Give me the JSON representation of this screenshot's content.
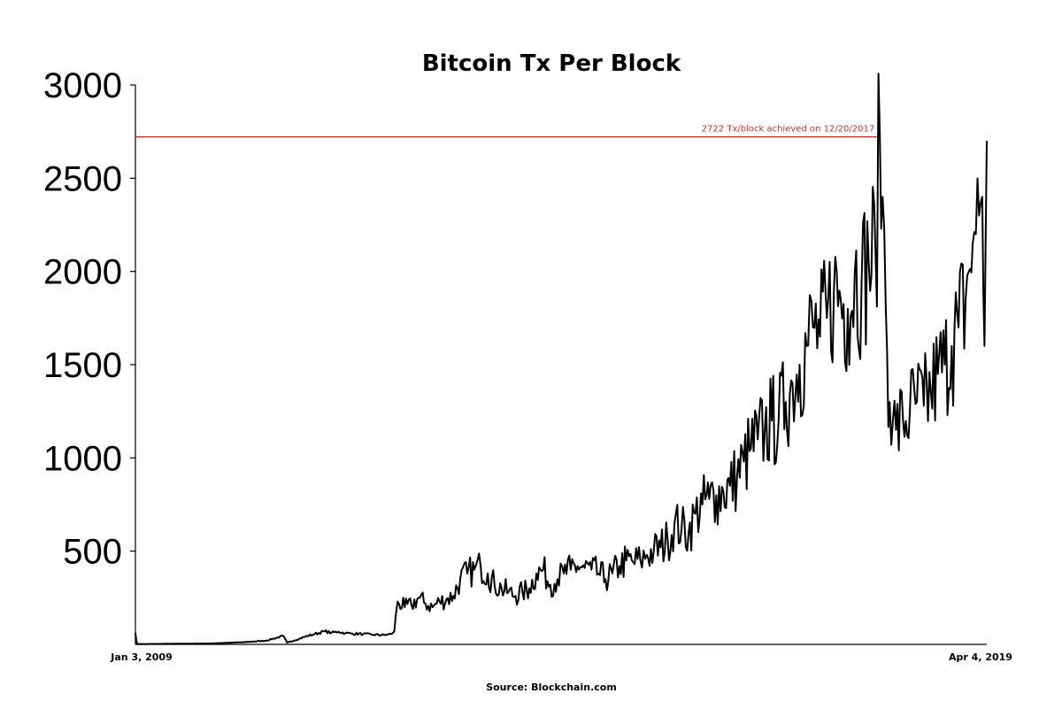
{
  "chart_data": {
    "type": "line",
    "title": "Bitcoin Tx Per Block",
    "source": "Source: Blockchain.com",
    "xlabel": "",
    "ylabel": "",
    "x_tick_labels": [
      "Jan 3, 2009",
      "Apr 4, 2019"
    ],
    "x_range": [
      "2009-01-03",
      "2019-04-04"
    ],
    "y_ticks": [
      500,
      1000,
      1500,
      2000,
      2500,
      3000
    ],
    "ylim": [
      0,
      3000
    ],
    "grid": false,
    "legend": "none",
    "line_color": "#000000",
    "reference_line": {
      "value": 2722,
      "color": "#c0392b",
      "x_end": "2017-12-20",
      "label": "2722 Tx/block achieved on 12/20/2017"
    },
    "series": [
      {
        "x": [
          "2009-01-03",
          "2009-01-10",
          "2009-03-01",
          "2009-06-01",
          "2009-09-01",
          "2009-12-01",
          "2010-02-01",
          "2010-05-01",
          "2010-08-01",
          "2010-10-15",
          "2010-11-01",
          "2010-12-01",
          "2011-01-15",
          "2011-03-01",
          "2011-04-15",
          "2011-05-15",
          "2011-06-15",
          "2011-07-15",
          "2011-08-15",
          "2011-10-01",
          "2011-11-15",
          "2012-01-01",
          "2012-02-01",
          "2012-02-15",
          "2012-03-01",
          "2012-04-01",
          "2012-05-01",
          "2012-06-01",
          "2012-07-01",
          "2012-08-01",
          "2012-09-01",
          "2012-10-01",
          "2012-11-01",
          "2012-12-01",
          "2013-01-01",
          "2013-02-01",
          "2013-03-01",
          "2013-04-01",
          "2013-05-01",
          "2013-06-01",
          "2013-07-01",
          "2013-08-01",
          "2013-09-01",
          "2013-10-01",
          "2013-11-01",
          "2013-12-01",
          "2014-01-01",
          "2014-02-01",
          "2014-03-01",
          "2014-04-01",
          "2014-05-01",
          "2014-06-01",
          "2014-07-01",
          "2014-08-01",
          "2014-09-01",
          "2014-10-01",
          "2014-11-01",
          "2014-12-01",
          "2015-01-01",
          "2015-02-01",
          "2015-03-01",
          "2015-04-01",
          "2015-05-01",
          "2015-06-01",
          "2015-07-01",
          "2015-08-01",
          "2015-09-01",
          "2015-10-01",
          "2015-11-01",
          "2015-12-01",
          "2016-01-01",
          "2016-02-01",
          "2016-03-01",
          "2016-04-01",
          "2016-05-01",
          "2016-06-01",
          "2016-07-01",
          "2016-08-01",
          "2016-09-01",
          "2016-10-01",
          "2016-11-01",
          "2016-12-01",
          "2017-01-01",
          "2017-02-01",
          "2017-03-01",
          "2017-04-01",
          "2017-05-01",
          "2017-06-01",
          "2017-07-01",
          "2017-08-01",
          "2017-09-01",
          "2017-10-01",
          "2017-11-01",
          "2017-12-01",
          "2017-12-20",
          "2018-01-01",
          "2018-01-15",
          "2018-02-01",
          "2018-02-15",
          "2018-03-01",
          "2018-04-01",
          "2018-05-01",
          "2018-06-01",
          "2018-07-01",
          "2018-08-01",
          "2018-09-01",
          "2018-10-01",
          "2018-11-01",
          "2018-12-01",
          "2019-01-01",
          "2019-01-15",
          "2019-02-01",
          "2019-02-15",
          "2019-03-01",
          "2019-03-15",
          "2019-03-25",
          "2019-04-04"
        ],
        "values": [
          60,
          2,
          2,
          3,
          4,
          5,
          8,
          12,
          20,
          45,
          10,
          20,
          40,
          55,
          70,
          62,
          68,
          60,
          58,
          55,
          52,
          50,
          55,
          70,
          230,
          200,
          210,
          250,
          220,
          200,
          230,
          240,
          260,
          350,
          380,
          400,
          420,
          380,
          320,
          300,
          280,
          260,
          280,
          300,
          380,
          400,
          320,
          350,
          380,
          400,
          420,
          410,
          400,
          380,
          350,
          380,
          420,
          450,
          440,
          450,
          480,
          500,
          520,
          560,
          650,
          620,
          600,
          700,
          750,
          780,
          800,
          820,
          850,
          900,
          980,
          1050,
          1100,
          1150,
          1200,
          1200,
          1300,
          1400,
          1500,
          1600,
          1700,
          1650,
          1750,
          1900,
          1850,
          1800,
          2000,
          1950,
          2050,
          2100,
          2722,
          2400,
          1800,
          1300,
          1200,
          1150,
          1200,
          1250,
          1300,
          1280,
          1350,
          1450,
          1500,
          1600,
          1700,
          1850,
          2000,
          2150,
          2200,
          2300,
          2400,
          1600,
          2700
        ]
      }
    ]
  }
}
